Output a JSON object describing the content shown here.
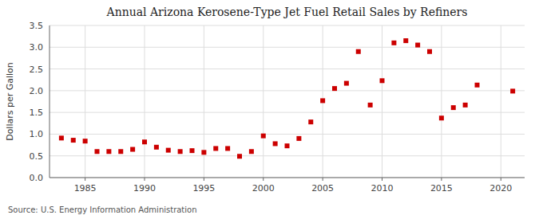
{
  "chart_data": {
    "type": "scatter",
    "title": "Annual Arizona Kerosene-Type Jet Fuel Retail Sales by Refiners",
    "y_label": "Dollars per Gallon",
    "annotation": "Source: U.S. Energy Information Administration",
    "color": "#cc0000",
    "marker": "square",
    "grid": true,
    "xlim": [
      1982,
      2022
    ],
    "ylim": [
      0.0,
      3.5
    ],
    "xticks": [
      1985,
      1990,
      1995,
      2000,
      2005,
      2010,
      2015,
      2020
    ],
    "yticks": [
      {
        "value": 0.0,
        "label": "0.0"
      },
      0.5,
      {
        "value": 1.0,
        "label": "1.0"
      },
      1.5,
      {
        "value": 2.0,
        "label": "2.0"
      },
      2.5,
      {
        "value": 3.0,
        "label": "3.0"
      },
      3.5
    ],
    "x": [
      1983,
      1984,
      1985,
      1986,
      1987,
      1988,
      1989,
      1990,
      1991,
      1992,
      1993,
      1994,
      1995,
      1996,
      1997,
      1998,
      1999,
      2000,
      2001,
      2002,
      2003,
      2004,
      2005,
      2006,
      2007,
      2008,
      2009,
      2010,
      2011,
      2012,
      2013,
      2014,
      2015,
      2016,
      2017,
      2018,
      2021
    ],
    "values": [
      0.91,
      0.86,
      0.84,
      0.6,
      0.6,
      0.6,
      0.65,
      0.82,
      0.7,
      0.63,
      0.6,
      0.62,
      0.58,
      0.67,
      0.67,
      0.49,
      0.6,
      0.96,
      0.78,
      0.73,
      0.9,
      1.28,
      1.77,
      2.05,
      2.17,
      2.9,
      1.67,
      2.23,
      3.1,
      3.15,
      3.05,
      2.9,
      1.37,
      1.61,
      1.67,
      2.13,
      1.99
    ]
  }
}
